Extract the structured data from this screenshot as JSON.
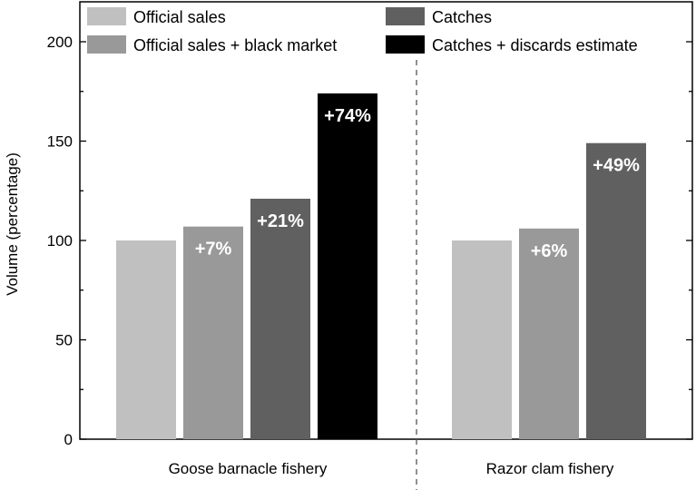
{
  "chart_data": {
    "type": "bar",
    "ylabel": "Volume (percentage)",
    "ylim": [
      0,
      200
    ],
    "yticks": [
      0,
      50,
      100,
      150,
      200
    ],
    "grid": false,
    "legend_position": "top",
    "groups": [
      {
        "name": "Goose barnacle fishery",
        "bars": [
          {
            "series": "Official sales",
            "value": 100,
            "label": ""
          },
          {
            "series": "Official sales + black market",
            "value": 107,
            "label": "+7%"
          },
          {
            "series": "Catches",
            "value": 121,
            "label": "+21%"
          },
          {
            "series": "Catches + discards estimate",
            "value": 174,
            "label": "+74%"
          }
        ]
      },
      {
        "name": "Razor clam fishery",
        "bars": [
          {
            "series": "Official sales",
            "value": 100,
            "label": ""
          },
          {
            "series": "Official sales + black market",
            "value": 106,
            "label": "+6%"
          },
          {
            "series": "Catches",
            "value": 149,
            "label": "+49%"
          }
        ]
      }
    ],
    "series": [
      {
        "name": "Official sales",
        "color": "#c0c0c0"
      },
      {
        "name": "Official sales + black market",
        "color": "#999999"
      },
      {
        "name": "Catches",
        "color": "#606060"
      },
      {
        "name": "Catches + discards estimate",
        "color": "#000000"
      }
    ]
  }
}
